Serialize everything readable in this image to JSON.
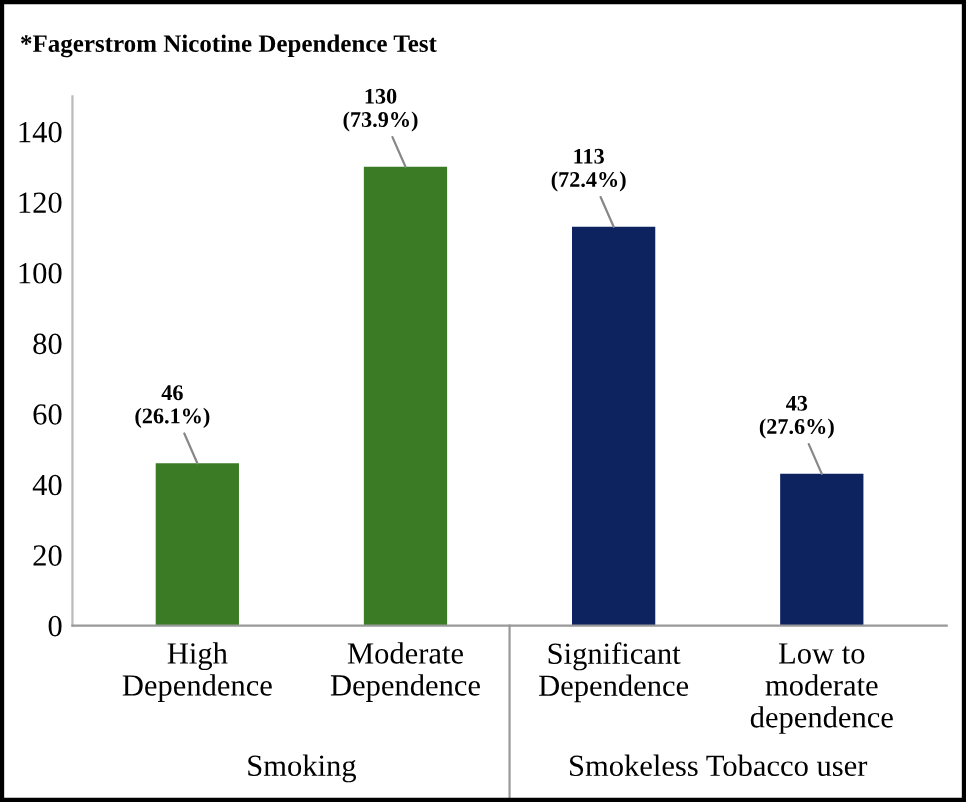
{
  "chart_data": {
    "type": "bar",
    "title": "*Fagerstrom Nicotine Dependence Test",
    "categories": [
      "High\nDependence",
      "Moderate\nDependence",
      "Significant\nDependence",
      "Low to\nmoderate\ndependence"
    ],
    "values": [
      46,
      130,
      113,
      43
    ],
    "colors": [
      "#3b7b25",
      "#3b7b25",
      "#0d235f",
      "#0d235f"
    ],
    "value_labels": [
      "46\n(26.1%)",
      "130\n(73.9%)",
      "113\n(72.4%)",
      "43\n(27.6%)"
    ],
    "annotations": [
      "Smoking",
      "Smokeless Tobacco user"
    ],
    "ylim": [
      0,
      150
    ],
    "yticks": [
      0,
      20,
      40,
      60,
      80,
      100,
      120,
      140
    ],
    "grid": false
  }
}
